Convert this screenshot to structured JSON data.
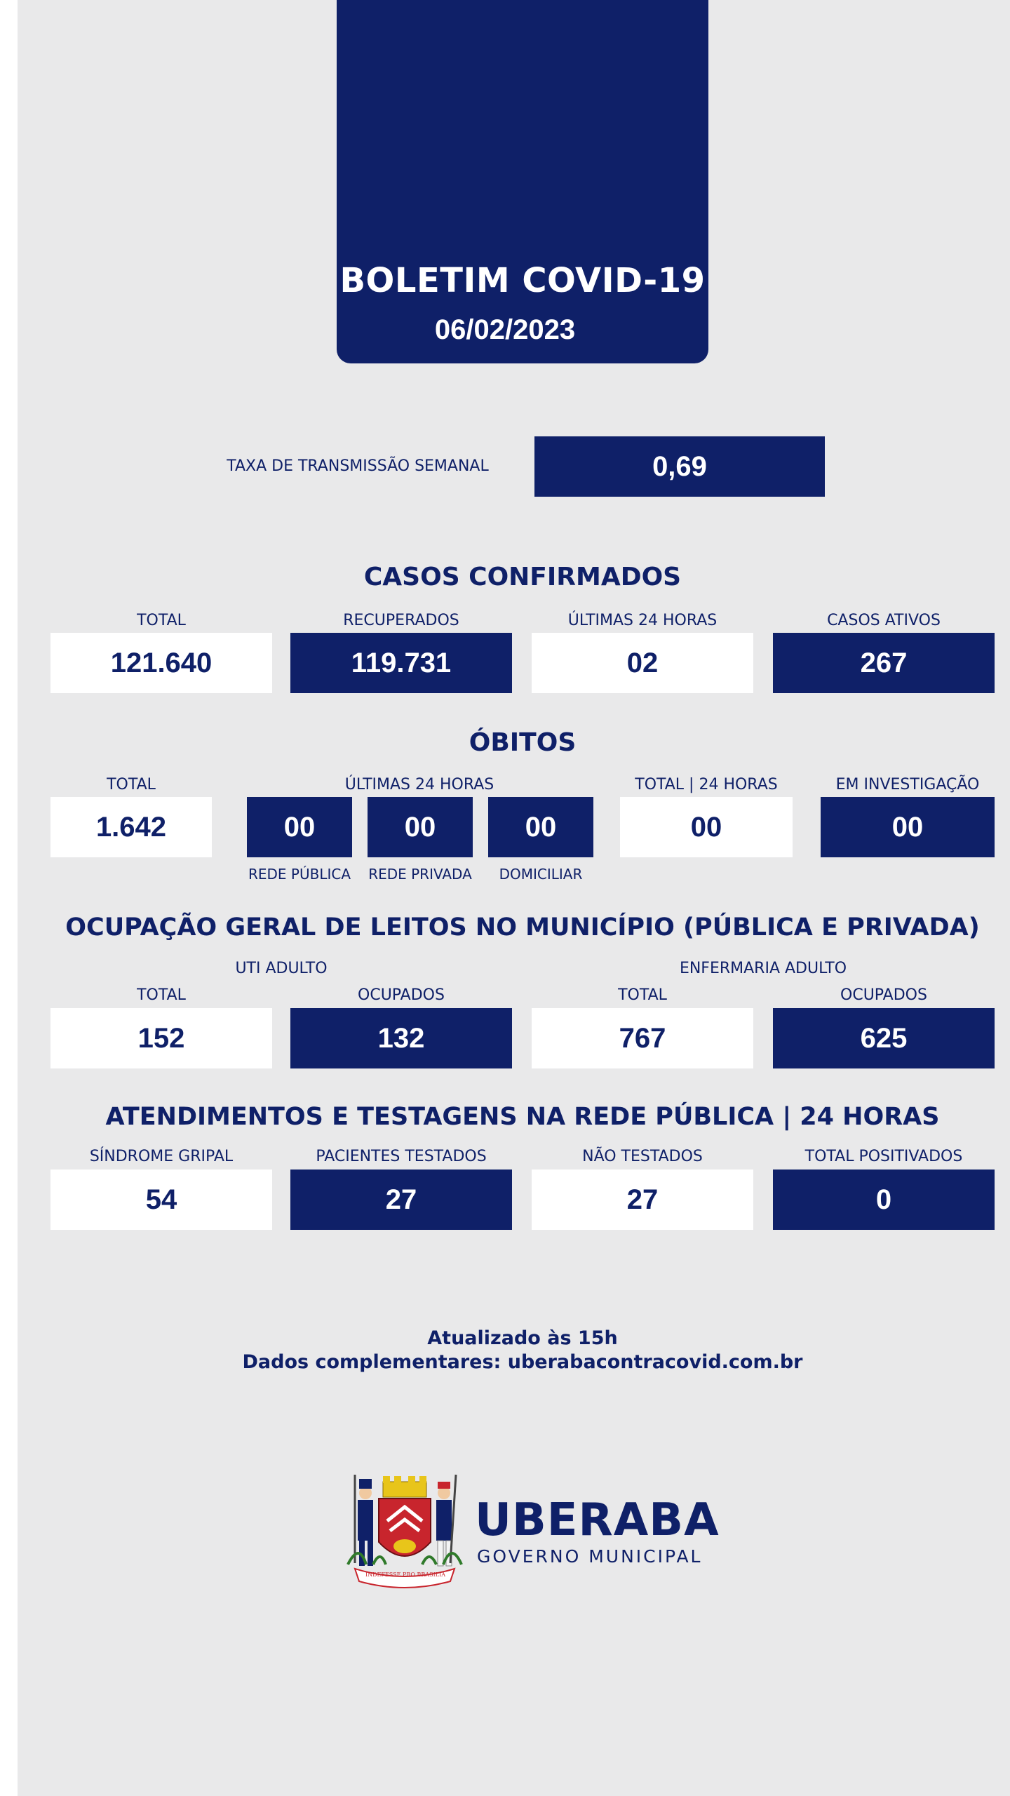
{
  "header": {
    "title": "BOLETIM COVID-19",
    "date": "06/02/2023"
  },
  "transmission": {
    "label": "TAXA DE TRANSMISSÃO SEMANAL",
    "value": "0,69"
  },
  "cases": {
    "title": "CASOS CONFIRMADOS",
    "items": [
      {
        "label": "TOTAL",
        "value": "121.640"
      },
      {
        "label": "RECUPERADOS",
        "value": "119.731"
      },
      {
        "label": "ÚLTIMAS 24 HORAS",
        "value": "02"
      },
      {
        "label": "CASOS ATIVOS",
        "value": "267"
      }
    ]
  },
  "deaths": {
    "title": "ÓBITOS",
    "total": {
      "label": "TOTAL",
      "value": "1.642"
    },
    "last24": {
      "label": "ÚLTIMAS 24 HORAS",
      "items": [
        {
          "sublabel": "REDE PÚBLICA",
          "value": "00"
        },
        {
          "sublabel": "REDE PRIVADA",
          "value": "00"
        },
        {
          "sublabel": "DOMICILIAR",
          "value": "00"
        }
      ]
    },
    "total24": {
      "label": "TOTAL | 24 HORAS",
      "value": "00"
    },
    "investigation": {
      "label": "EM INVESTIGAÇÃO",
      "value": "00"
    }
  },
  "beds": {
    "title": "OCUPAÇÃO GERAL DE LEITOS NO MUNICÍPIO (PÚBLICA E PRIVADA)",
    "uti": {
      "label": "UTI ADULTO",
      "total": {
        "label": "TOTAL",
        "value": "152"
      },
      "occupied": {
        "label": "OCUPADOS",
        "value": "132"
      }
    },
    "ward": {
      "label": "ENFERMARIA ADULTO",
      "total": {
        "label": "TOTAL",
        "value": "767"
      },
      "occupied": {
        "label": "OCUPADOS",
        "value": "625"
      }
    }
  },
  "tests": {
    "title": "ATENDIMENTOS E TESTAGENS NA REDE PÚBLICA | 24 HORAS",
    "items": [
      {
        "label": "SÍNDROME GRIPAL",
        "value": "54"
      },
      {
        "label": "PACIENTES TESTADOS",
        "value": "27"
      },
      {
        "label": "NÃO TESTADOS",
        "value": "27"
      },
      {
        "label": "TOTAL POSITIVADOS",
        "value": "0"
      }
    ]
  },
  "footer": {
    "updated": "Atualizado às 15h",
    "source": "Dados complementares: uberabacontracovid.com.br"
  },
  "logo": {
    "name": "UBERABA",
    "subtitle": "GOVERNO MUNICIPAL",
    "motto": "INDEFESSE PRO BRASILIA",
    "icon": "municipal-coat-of-arms-icon",
    "colors": {
      "navy": "#0f2068",
      "red": "#c8252d",
      "gold": "#e8c51a"
    }
  }
}
